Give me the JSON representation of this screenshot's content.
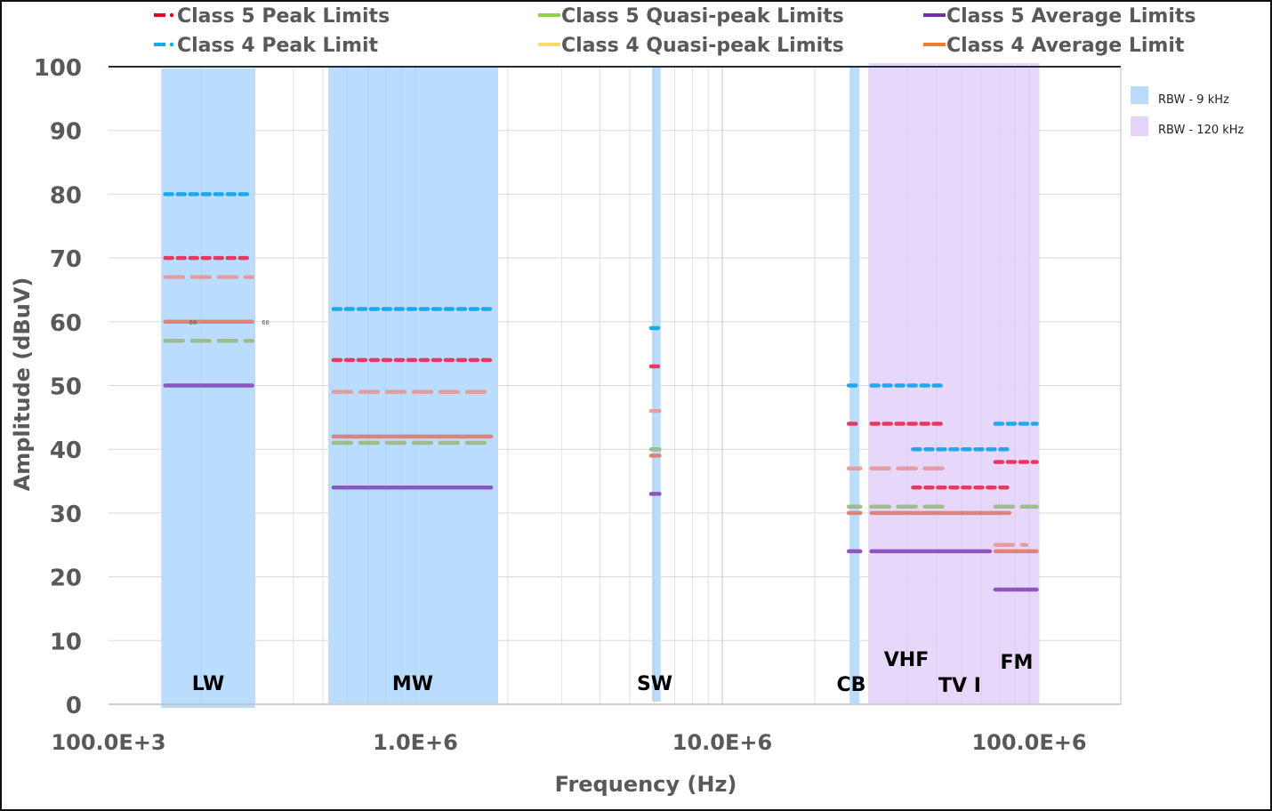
{
  "chart_data": {
    "type": "line",
    "title": "",
    "xlabel": "Frequency (Hz)",
    "ylabel": "Amplitude (dBuV)",
    "xscale": "log",
    "xlim": [
      100000,
      200000000
    ],
    "ylim": [
      0,
      100
    ],
    "grid": true,
    "x_ticks": [
      {
        "value": 100000,
        "label": "100.0E+3"
      },
      {
        "value": 1000000,
        "label": "1.0E+6"
      },
      {
        "value": 10000000,
        "label": "10.0E+6"
      },
      {
        "value": 100000000,
        "label": "100.0E+6"
      }
    ],
    "y_ticks": [
      0,
      10,
      20,
      30,
      40,
      50,
      60,
      70,
      80,
      90,
      100
    ],
    "legend": {
      "placement": "top",
      "entries": [
        {
          "name": "Class 5 Peak Limits",
          "color": "#e8001c",
          "style": "dash-dot"
        },
        {
          "name": "Class 5 Quasi-peak Limits",
          "color": "#8fd14f",
          "style": "solid"
        },
        {
          "name": "Class 5 Average Limits",
          "color": "#7030a0",
          "style": "solid"
        },
        {
          "name": "Class 4 Peak Limit",
          "color": "#00b0f0",
          "style": "dash-dot"
        },
        {
          "name": "Class 4 Quasi-peak Limits",
          "color": "#ffd966",
          "style": "solid"
        },
        {
          "name": "Class 4 Average Limit",
          "color": "#ed7d31",
          "style": "solid"
        }
      ]
    },
    "rbw_legend": {
      "placement": "right",
      "entries": [
        {
          "name": "RBW - 9 kHz",
          "color": "#b9dcfd"
        },
        {
          "name": "RBW - 120 kHz",
          "color": "#e6d5fa"
        }
      ]
    },
    "bands": [
      {
        "label": "LW",
        "rbw": "9 kHz",
        "f_start": 148500,
        "f_stop": 300000
      },
      {
        "label": "MW",
        "rbw": "9 kHz",
        "f_start": 520000,
        "f_stop": 1860000
      },
      {
        "label": "SW",
        "rbw": "9 kHz",
        "f_start": 5900000,
        "f_stop": 6300000
      },
      {
        "label": "CB",
        "rbw": "9 kHz",
        "f_start": 26000000,
        "f_stop": 28000000
      },
      {
        "label": "VHF",
        "rbw": "120 kHz",
        "f_start": 30000000,
        "f_stop": 54000000
      },
      {
        "label": "TV I",
        "rbw": "120 kHz",
        "f_start": 41000000,
        "f_stop": 88000000
      },
      {
        "label": "FM",
        "rbw": "120 kHz",
        "f_start": 76000000,
        "f_stop": 108000000
      }
    ],
    "rbw_regions": [
      {
        "rbw": "9 kHz",
        "f_start": 148500,
        "f_stop": 300000
      },
      {
        "rbw": "9 kHz",
        "f_start": 520000,
        "f_stop": 1860000
      },
      {
        "rbw": "9 kHz",
        "f_start": 5900000,
        "f_stop": 6300000
      },
      {
        "rbw": "9 kHz",
        "f_start": 26000000,
        "f_stop": 28000000
      },
      {
        "rbw": "120 kHz",
        "f_start": 30000000,
        "f_stop": 108000000
      }
    ],
    "series": [
      {
        "name": "Class 4 Peak Limit",
        "color": "#15a6ee",
        "dash": "peak",
        "segments": [
          {
            "f_start": 150000,
            "f_stop": 300000,
            "level": 80
          },
          {
            "f_start": 530000,
            "f_stop": 1800000,
            "level": 62
          },
          {
            "f_start": 5900000,
            "f_stop": 6200000,
            "level": 59
          },
          {
            "f_start": 26000000,
            "f_stop": 28000000,
            "level": 50
          },
          {
            "f_start": 30000000,
            "f_stop": 54000000,
            "level": 50
          },
          {
            "f_start": 41000000,
            "f_stop": 88000000,
            "level": 40
          },
          {
            "f_start": 76000000,
            "f_stop": 108000000,
            "level": 44
          }
        ]
      },
      {
        "name": "Class 5 Peak Limits",
        "color": "#e8305a",
        "dash": "peak",
        "segments": [
          {
            "f_start": 150000,
            "f_stop": 300000,
            "level": 70
          },
          {
            "f_start": 530000,
            "f_stop": 1800000,
            "level": 54
          },
          {
            "f_start": 5900000,
            "f_stop": 6200000,
            "level": 53
          },
          {
            "f_start": 26000000,
            "f_stop": 28000000,
            "level": 44
          },
          {
            "f_start": 30000000,
            "f_stop": 54000000,
            "level": 44
          },
          {
            "f_start": 41000000,
            "f_stop": 88000000,
            "level": 34
          },
          {
            "f_start": 76000000,
            "f_stop": 108000000,
            "level": 38
          }
        ]
      },
      {
        "name": "Class 4 Quasi-peak Limits",
        "color": "#e39b9f",
        "dash": "qp",
        "segments": [
          {
            "f_start": 150000,
            "f_stop": 300000,
            "level": 67
          },
          {
            "f_start": 530000,
            "f_stop": 1800000,
            "level": 49
          },
          {
            "f_start": 5900000,
            "f_stop": 6200000,
            "level": 46
          },
          {
            "f_start": 26000000,
            "f_stop": 28000000,
            "level": 37
          },
          {
            "f_start": 30000000,
            "f_stop": 54000000,
            "level": 37
          },
          {
            "f_start": 76000000,
            "f_stop": 100000000,
            "level": 25
          }
        ]
      },
      {
        "name": "Class 4 Average Limit",
        "color": "#df7f76",
        "dash": "solid",
        "segments": [
          {
            "f_start": 150000,
            "f_stop": 300000,
            "level": 60
          },
          {
            "f_start": 530000,
            "f_stop": 1800000,
            "level": 42
          },
          {
            "f_start": 5900000,
            "f_stop": 6200000,
            "level": 39
          },
          {
            "f_start": 26000000,
            "f_stop": 28000000,
            "level": 30
          },
          {
            "f_start": 30000000,
            "f_stop": 88000000,
            "level": 30
          },
          {
            "f_start": 76000000,
            "f_stop": 108000000,
            "level": 24
          }
        ]
      },
      {
        "name": "Class 5 Quasi-peak Limits",
        "color": "#9fba8a",
        "dash": "qp",
        "segments": [
          {
            "f_start": 150000,
            "f_stop": 300000,
            "level": 57
          },
          {
            "f_start": 530000,
            "f_stop": 1800000,
            "level": 41
          },
          {
            "f_start": 5900000,
            "f_stop": 6200000,
            "level": 40
          },
          {
            "f_start": 26000000,
            "f_stop": 28000000,
            "level": 31
          },
          {
            "f_start": 30000000,
            "f_stop": 54000000,
            "level": 31
          },
          {
            "f_start": 76000000,
            "f_stop": 108000000,
            "level": 31
          }
        ]
      },
      {
        "name": "Class 5 Average Limits",
        "color": "#8a4fbf",
        "dash": "solid",
        "segments": [
          {
            "f_start": 150000,
            "f_stop": 300000,
            "level": 50
          },
          {
            "f_start": 530000,
            "f_stop": 1800000,
            "level": 34
          },
          {
            "f_start": 5900000,
            "f_stop": 6200000,
            "level": 33
          },
          {
            "f_start": 26000000,
            "f_stop": 28000000,
            "level": 24
          },
          {
            "f_start": 30000000,
            "f_stop": 76000000,
            "level": 24
          },
          {
            "f_start": 76000000,
            "f_stop": 108000000,
            "level": 18
          }
        ]
      }
    ],
    "annotations": [
      {
        "text": "60",
        "f": 150000,
        "level": 60
      },
      {
        "text": "60",
        "f": 320000,
        "level": 60
      }
    ]
  }
}
